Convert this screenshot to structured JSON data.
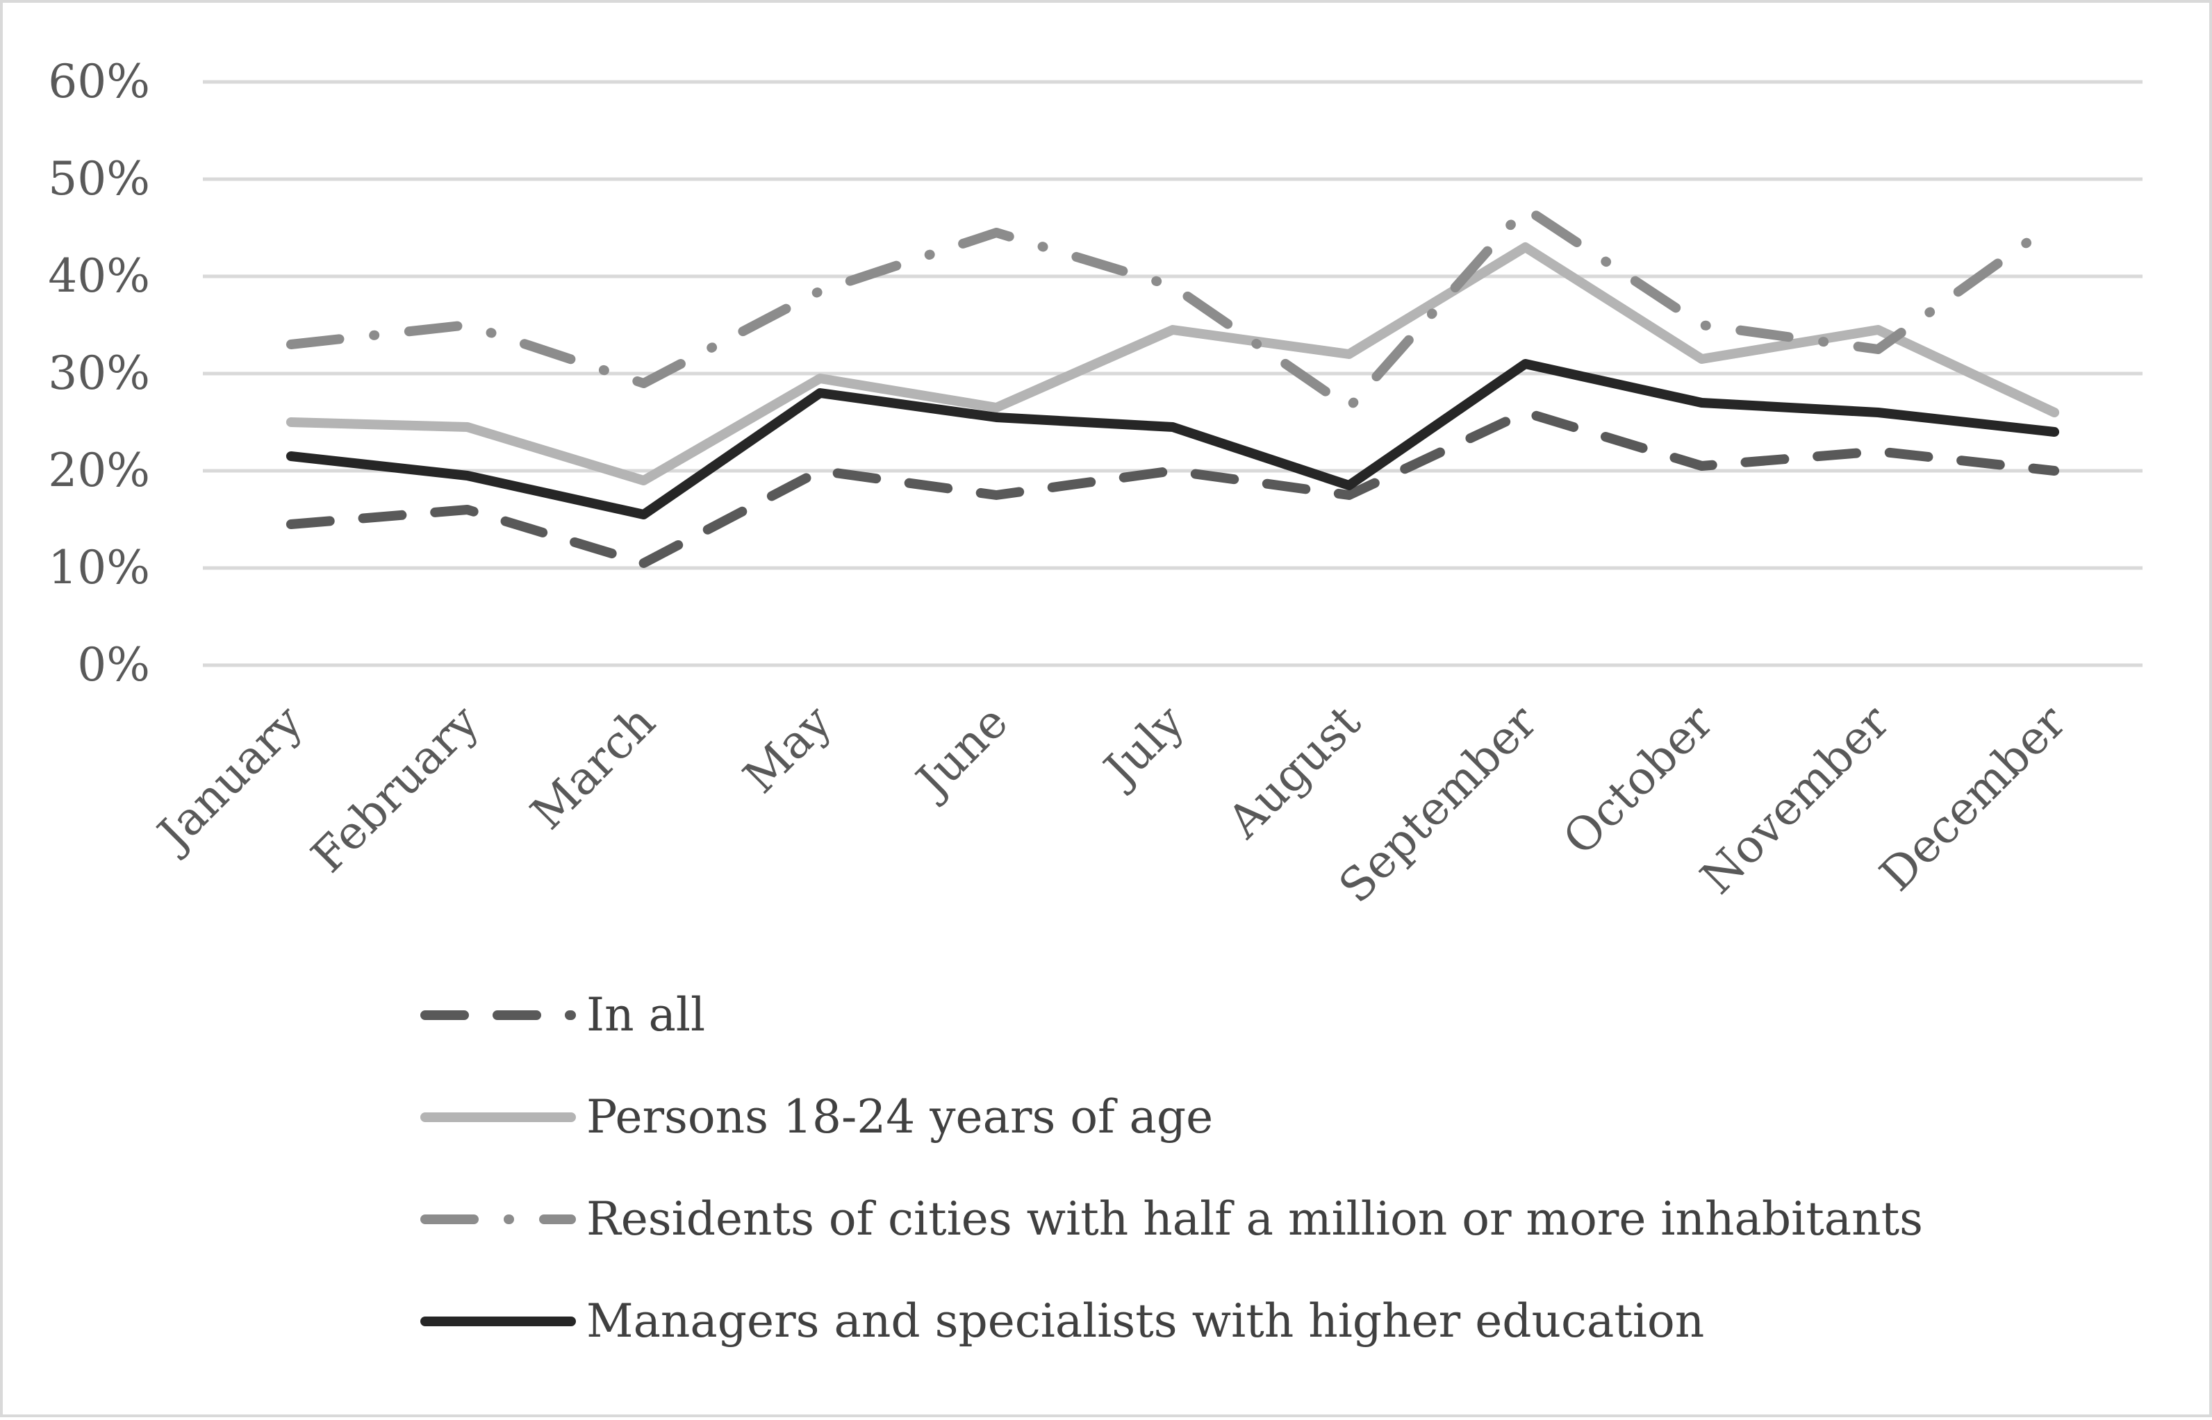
{
  "chart_data": {
    "type": "line",
    "title": "",
    "xlabel": "",
    "ylabel": "",
    "ylim": [
      0,
      60
    ],
    "y_tick_format": "percent",
    "y_ticks": [
      "0%",
      "10%",
      "20%",
      "30%",
      "40%",
      "50%",
      "60%"
    ],
    "grid": true,
    "legend_position": "bottom",
    "categories": [
      "January",
      "February",
      "March",
      "May",
      "June",
      "July",
      "August",
      "September",
      "October",
      "November",
      "December"
    ],
    "series": [
      {
        "name": "In all",
        "style": "dashed",
        "color": "#595959",
        "values": [
          14.5,
          16,
          10.5,
          20,
          17.5,
          20,
          17.5,
          26,
          20.5,
          22,
          20
        ]
      },
      {
        "name": "Persons 18-24 years of age",
        "style": "solid",
        "color": "#b4b4b4",
        "values": [
          25,
          24.5,
          19,
          29.5,
          26.5,
          34.5,
          32,
          43,
          31.5,
          34.5,
          26
        ]
      },
      {
        "name": "Residents of cities with half a million or more inhabitants",
        "style": "dash-dot",
        "color": "#8c8c8c",
        "values": [
          33,
          35,
          29,
          38.5,
          44.5,
          39,
          26.5,
          47,
          35,
          32.5,
          45.5
        ]
      },
      {
        "name": "Managers and specialists with higher education",
        "style": "solid",
        "color": "#262626",
        "values": [
          21.5,
          19.5,
          15.5,
          28,
          25.5,
          24.5,
          18.5,
          31,
          27,
          26,
          24
        ]
      }
    ]
  }
}
